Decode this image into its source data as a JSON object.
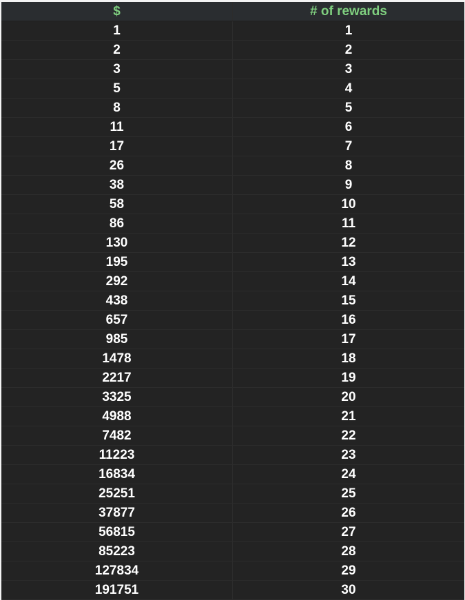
{
  "header": {
    "col1": "$",
    "col2": "# of rewards"
  },
  "header_color": "#7fcf7f",
  "rows": [
    [
      "1",
      "1"
    ],
    [
      "2",
      "2"
    ],
    [
      "3",
      "3"
    ],
    [
      "5",
      "4"
    ],
    [
      "8",
      "5"
    ],
    [
      "11",
      "6"
    ],
    [
      "17",
      "7"
    ],
    [
      "26",
      "8"
    ],
    [
      "38",
      "9"
    ],
    [
      "58",
      "10"
    ],
    [
      "86",
      "11"
    ],
    [
      "130",
      "12"
    ],
    [
      "195",
      "13"
    ],
    [
      "292",
      "14"
    ],
    [
      "438",
      "15"
    ],
    [
      "657",
      "16"
    ],
    [
      "985",
      "17"
    ],
    [
      "1478",
      "18"
    ],
    [
      "2217",
      "19"
    ],
    [
      "3325",
      "20"
    ],
    [
      "4988",
      "21"
    ],
    [
      "7482",
      "22"
    ],
    [
      "11223",
      "23"
    ],
    [
      "16834",
      "24"
    ],
    [
      "25251",
      "25"
    ],
    [
      "37877",
      "26"
    ],
    [
      "56815",
      "27"
    ],
    [
      "85223",
      "28"
    ],
    [
      "127834",
      "29"
    ],
    [
      "191751",
      "30"
    ]
  ]
}
